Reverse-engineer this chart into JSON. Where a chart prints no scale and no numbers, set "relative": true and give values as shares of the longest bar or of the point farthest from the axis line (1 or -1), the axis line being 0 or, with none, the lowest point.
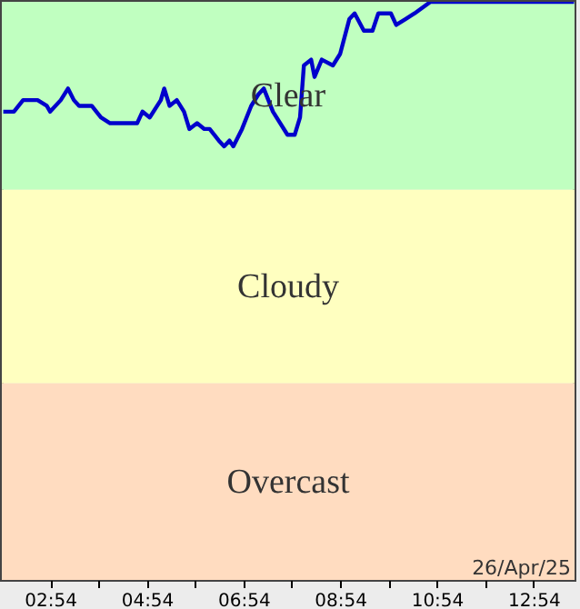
{
  "chart_data": {
    "type": "line",
    "relative": true,
    "x": [
      1.93,
      2.15,
      2.34,
      2.64,
      2.83,
      2.9,
      3.12,
      3.27,
      3.39,
      3.5,
      3.76,
      3.95,
      4.14,
      4.32,
      4.7,
      4.81,
      4.96,
      5.19,
      5.26,
      5.37,
      5.52,
      5.67,
      5.78,
      5.94,
      6.09,
      6.2,
      6.39,
      6.5,
      6.61,
      6.69,
      6.87,
      7.06,
      7.21,
      7.32,
      7.51,
      7.81,
      7.96,
      8.07,
      8.15,
      8.3,
      8.37,
      8.52,
      8.75,
      8.9,
      9.09,
      9.2,
      9.39,
      9.57,
      9.69,
      9.95,
      10.06,
      10.25,
      10.44,
      10.77,
      13.74
    ],
    "series": [
      {
        "color": "#0000cc",
        "values": [
          0.81,
          0.81,
          0.83,
          0.83,
          0.82,
          0.81,
          0.83,
          0.85,
          0.83,
          0.82,
          0.82,
          0.8,
          0.79,
          0.79,
          0.79,
          0.81,
          0.8,
          0.83,
          0.85,
          0.82,
          0.83,
          0.81,
          0.78,
          0.79,
          0.78,
          0.78,
          0.76,
          0.75,
          0.76,
          0.75,
          0.78,
          0.82,
          0.84,
          0.85,
          0.81,
          0.77,
          0.77,
          0.8,
          0.89,
          0.9,
          0.87,
          0.9,
          0.89,
          0.91,
          0.97,
          0.98,
          0.95,
          0.95,
          0.98,
          0.98,
          0.96,
          0.97,
          0.98,
          1,
          1
        ]
      }
    ],
    "xlim": [
      1.9,
      13.75
    ],
    "xticks": [
      {
        "value": 2.9,
        "label": "02:54"
      },
      {
        "value": 3.9,
        "label": null
      },
      {
        "value": 4.9,
        "label": "04:54"
      },
      {
        "value": 5.9,
        "label": null
      },
      {
        "value": 6.9,
        "label": "06:54"
      },
      {
        "value": 7.9,
        "label": null
      },
      {
        "value": 8.9,
        "label": "08:54"
      },
      {
        "value": 9.9,
        "label": null
      },
      {
        "value": 10.9,
        "label": "10:54"
      },
      {
        "value": 11.9,
        "label": null
      },
      {
        "value": 12.9,
        "label": "12:54"
      }
    ],
    "bands": [
      {
        "axis": "y",
        "from": 0.675,
        "to": 1,
        "label": "Clear",
        "color": "#c0ffc0"
      },
      {
        "axis": "y",
        "from": 0.34,
        "to": 0.675,
        "label": "Cloudy",
        "color": "#ffffc0"
      },
      {
        "axis": "y",
        "from": 0,
        "to": 0.34,
        "label": "Overcast",
        "color": "#ffdcc0"
      }
    ],
    "annotations": [
      "26/Apr/25"
    ]
  }
}
